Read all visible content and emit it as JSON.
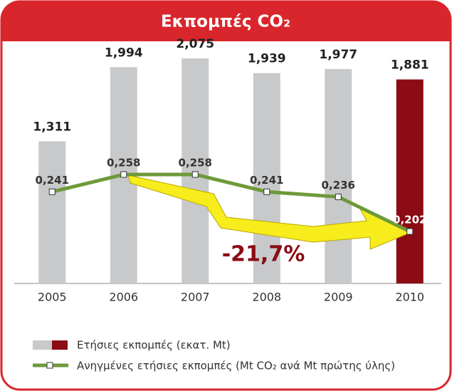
{
  "chart_data": {
    "type": "bar",
    "title": "Εκπομπές CO₂",
    "categories": [
      "2005",
      "2006",
      "2007",
      "2008",
      "2009",
      "2010"
    ],
    "series": [
      {
        "name": "Ετήσιες εκπομπές (εκατ. Mt)",
        "type": "bar",
        "color": "#c8c9cb",
        "colors": [
          "#c8c9cb",
          "#c8c9cb",
          "#c8c9cb",
          "#c8c9cb",
          "#c8c9cb",
          "#8b0c14"
        ],
        "values": [
          1.311,
          1.994,
          2.075,
          1.939,
          1.977,
          1.881
        ],
        "value_labels": [
          "1,311",
          "1,994",
          "2,075",
          "1,939",
          "1,977",
          "1,881"
        ]
      },
      {
        "name": "Ανηγμένες ετήσιες εκπομπές (Mt CO₂ ανά Mt πρώτης ύλης)",
        "type": "line",
        "axis": "y2",
        "color": "#6e9a3a",
        "values": [
          0.241,
          0.258,
          0.258,
          0.241,
          0.236,
          0.202
        ],
        "value_labels": [
          "0,241",
          "0,258",
          "0,258",
          "0,241",
          "0,236",
          "0,202"
        ]
      }
    ],
    "annotation": "-21,7%"
  }
}
